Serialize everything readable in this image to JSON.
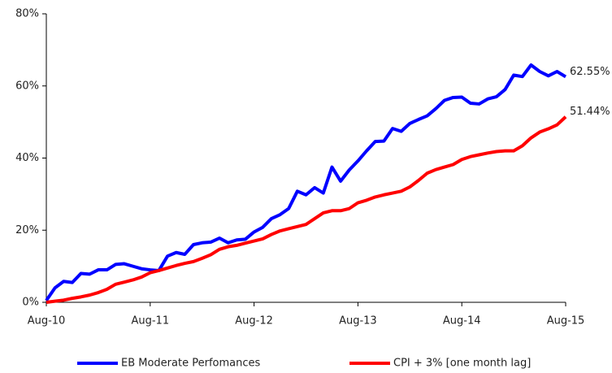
{
  "chart_data": {
    "type": "line",
    "categories": [
      "Aug-10",
      null,
      null,
      null,
      null,
      null,
      null,
      null,
      null,
      null,
      null,
      null,
      "Aug-11",
      null,
      null,
      null,
      null,
      null,
      null,
      null,
      null,
      null,
      null,
      null,
      "Aug-12",
      null,
      null,
      null,
      null,
      null,
      null,
      null,
      null,
      null,
      null,
      null,
      "Aug-13",
      null,
      null,
      null,
      null,
      null,
      null,
      null,
      null,
      null,
      null,
      null,
      "Aug-14",
      null,
      null,
      null,
      null,
      null,
      null,
      null,
      null,
      null,
      null,
      null,
      "Aug-15"
    ],
    "series": [
      {
        "name": "EB Moderate Perfomances",
        "color": "#0000ff",
        "values": [
          0.5,
          4,
          5.8,
          5.5,
          8,
          7.8,
          9,
          9,
          10.5,
          10.7,
          10,
          9.3,
          9,
          8.8,
          12.8,
          13.8,
          13.3,
          16,
          16.5,
          16.7,
          17.8,
          16.5,
          17.3,
          17.5,
          19.5,
          20.8,
          23.2,
          24.3,
          26,
          30.8,
          29.8,
          31.8,
          30.3,
          37.5,
          33.6,
          36.7,
          39.2,
          42,
          44.6,
          44.7,
          48.2,
          47.4,
          49.6,
          50.7,
          51.7,
          53.7,
          56,
          56.8,
          56.9,
          55.2,
          55,
          56.4,
          57,
          59,
          63,
          62.6,
          65.8,
          64,
          62.8,
          64,
          62.55
        ],
        "value_labels": [
          null,
          null,
          null,
          null,
          null,
          null,
          null,
          null,
          null,
          null,
          null,
          null,
          null,
          null,
          null,
          null,
          null,
          null,
          null,
          null,
          null,
          null,
          null,
          null,
          null,
          null,
          null,
          null,
          null,
          null,
          null,
          null,
          null,
          null,
          null,
          null,
          null,
          null,
          null,
          null,
          null,
          null,
          null,
          null,
          null,
          null,
          null,
          null,
          null,
          null,
          null,
          null,
          null,
          null,
          null,
          null,
          null,
          null,
          null,
          null,
          "62.55%"
        ]
      },
      {
        "name": "CPI + 3% [one month lag]",
        "color": "#ff0000",
        "values": [
          0,
          0.3,
          0.6,
          1.1,
          1.5,
          2,
          2.7,
          3.6,
          5,
          5.6,
          6.2,
          7,
          8.2,
          8.8,
          9.5,
          10.2,
          10.8,
          11.3,
          12.2,
          13.2,
          14.7,
          15.4,
          15.8,
          16.4,
          17,
          17.6,
          18.8,
          19.8,
          20.4,
          21,
          21.6,
          23.2,
          24.8,
          25.4,
          25.4,
          26,
          27.6,
          28.3,
          29.2,
          29.8,
          30.3,
          30.8,
          32,
          33.8,
          35.8,
          36.8,
          37.5,
          38.2,
          39.6,
          40.4,
          40.9,
          41.4,
          41.8,
          42,
          42,
          43.4,
          45.6,
          47.2,
          48.1,
          49.2,
          51.44
        ],
        "value_labels": [
          null,
          null,
          null,
          null,
          null,
          null,
          null,
          null,
          null,
          null,
          null,
          null,
          null,
          null,
          null,
          null,
          null,
          null,
          null,
          null,
          null,
          null,
          null,
          null,
          null,
          null,
          null,
          null,
          null,
          null,
          null,
          null,
          null,
          null,
          null,
          null,
          null,
          null,
          null,
          null,
          null,
          null,
          null,
          null,
          null,
          null,
          null,
          null,
          null,
          null,
          null,
          null,
          null,
          null,
          null,
          null,
          null,
          null,
          null,
          null,
          "51.44%"
        ]
      }
    ],
    "ylim": [
      0,
      80
    ],
    "yticks": [
      {
        "value": 0,
        "label": "0%"
      },
      {
        "value": 20,
        "label": "20%"
      },
      {
        "value": 40,
        "label": "40%"
      },
      {
        "value": 60,
        "label": "60%"
      },
      {
        "value": 80,
        "label": "80%"
      }
    ],
    "grid": false,
    "legend": "bottom"
  }
}
